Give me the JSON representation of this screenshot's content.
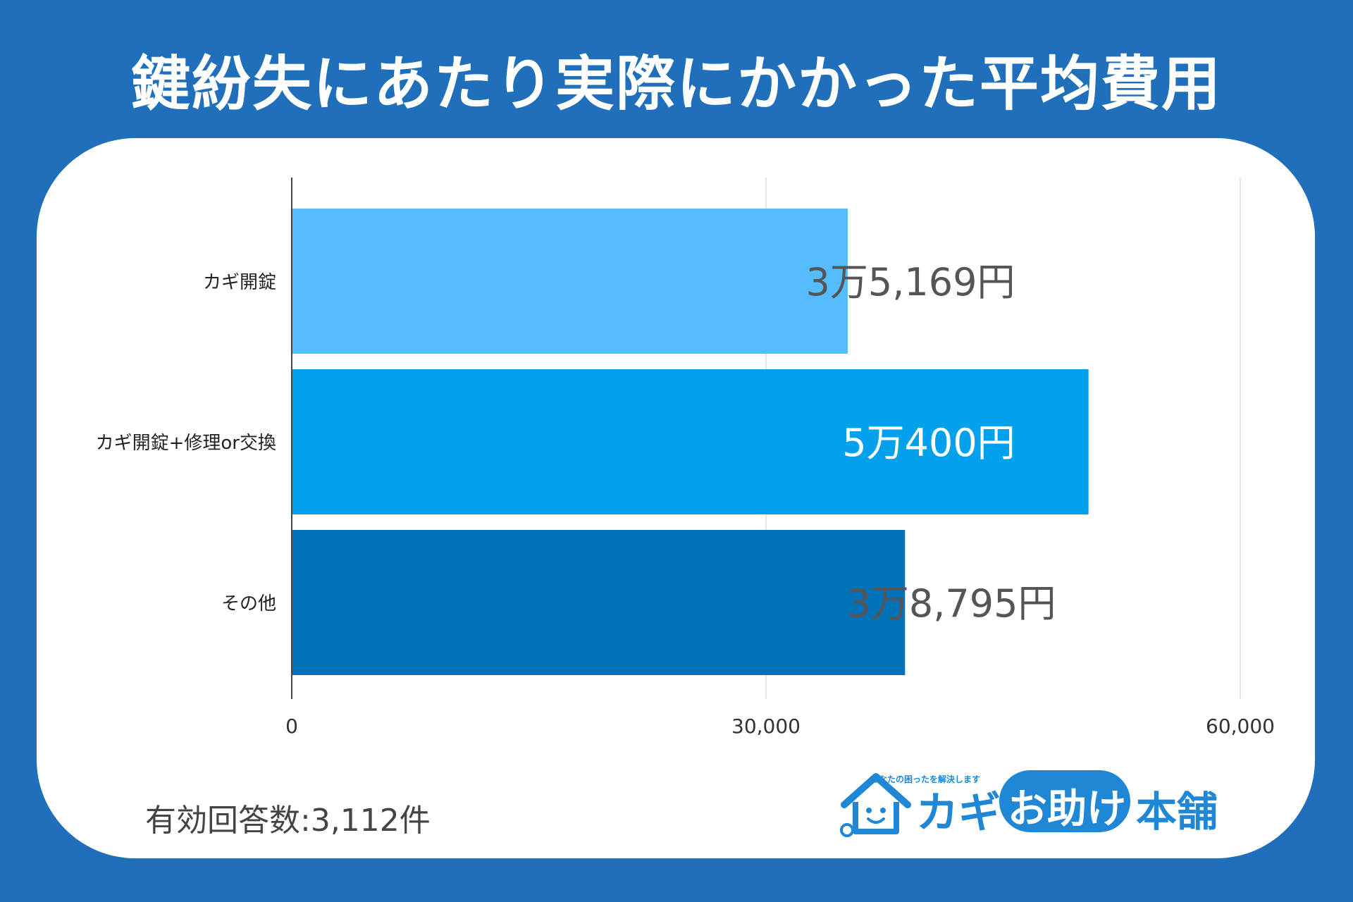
{
  "title": "鍵紛失にあたり実際にかかった平均費用",
  "footnote": "有効回答数:3,112件",
  "logo": {
    "tagline": "あなたの困ったを解決します",
    "brand_kagi": "カギ",
    "brand_otasuke": "お助け",
    "brand_honpo": "本舗"
  },
  "chart_data": {
    "type": "bar",
    "orientation": "horizontal",
    "categories": [
      "カギ開錠",
      "カギ開錠+修理or交換",
      "その他"
    ],
    "values": [
      35169,
      50400,
      38795
    ],
    "data_labels": [
      "3万5,169円",
      "5万400円",
      "3万8,795円"
    ],
    "colors": [
      "#56bdfc",
      "#03a0ec",
      "#0272b8"
    ],
    "label_colors": [
      "#555555",
      "#ffffff",
      "#555555"
    ],
    "xlim": [
      0,
      60000
    ],
    "xticks": [
      0,
      30000,
      60000
    ],
    "xtick_labels": [
      "0",
      "30,000",
      "60,000"
    ],
    "grid": true
  }
}
